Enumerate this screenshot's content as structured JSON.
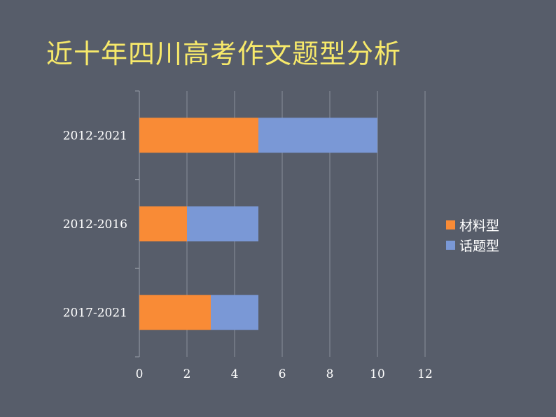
{
  "title": "近十年四川高考作文题型分析",
  "chart_data": {
    "type": "bar",
    "orientation": "horizontal",
    "stacked": true,
    "title": "近十年四川高考作文题型分析",
    "categories": [
      "2012-2021",
      "2012-2016",
      "2017-2021"
    ],
    "series": [
      {
        "name": "材料型",
        "values": [
          5,
          2,
          3
        ],
        "color": "#f98b36"
      },
      {
        "name": "话题型",
        "values": [
          5,
          3,
          2
        ],
        "color": "#7a98d6"
      }
    ],
    "xlim": [
      0,
      12
    ],
    "x_ticks": [
      0,
      2,
      4,
      6,
      8,
      10,
      12
    ],
    "xlabel": "",
    "ylabel": "",
    "grid": "vertical",
    "legend_position": "right"
  }
}
